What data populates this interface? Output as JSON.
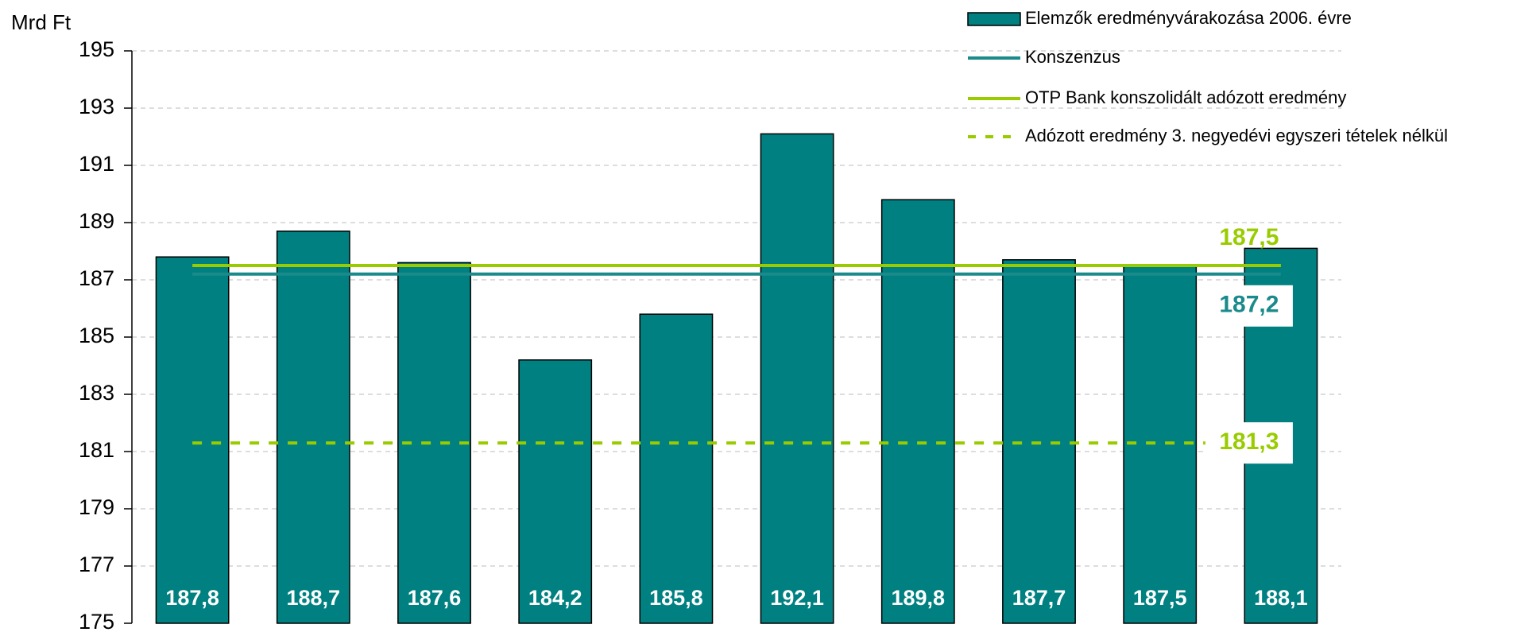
{
  "chart_data": {
    "type": "bar",
    "y_label": "Mrd Ft",
    "categories": [
      null,
      null,
      null,
      null,
      null,
      null,
      null,
      null,
      null,
      null
    ],
    "series": [
      {
        "name": "Elemzők eredményvárakozása 2006. évre",
        "color": "#008080",
        "values": [
          187.8,
          188.7,
          187.6,
          184.2,
          185.8,
          192.1,
          189.8,
          187.7,
          187.5,
          188.1
        ],
        "value_labels": [
          "187,8",
          "188,7",
          "187,6",
          "184,2",
          "185,8",
          "192,1",
          "189,8",
          "187,7",
          "187,5",
          "188,1"
        ]
      }
    ],
    "reference_lines": [
      {
        "name": "Konszenzus",
        "color": "#1a8a8a",
        "value": 187.2,
        "value_label": "187,2",
        "dashed": false
      },
      {
        "name": "OTP Bank konszolidált adózott eredmény",
        "color": "#99cc00",
        "value": 187.5,
        "value_label": "187,5",
        "dashed": false
      },
      {
        "name": "Adózott eredmény 3. negyedévi egyszeri tételek nélkül",
        "color": "#99cc00",
        "value": 181.3,
        "value_label": "181,3",
        "dashed": true
      }
    ],
    "ylim": [
      175,
      195
    ],
    "yticks": [
      175,
      177,
      179,
      181,
      183,
      185,
      187,
      189,
      191,
      193,
      195
    ],
    "grid": true
  }
}
